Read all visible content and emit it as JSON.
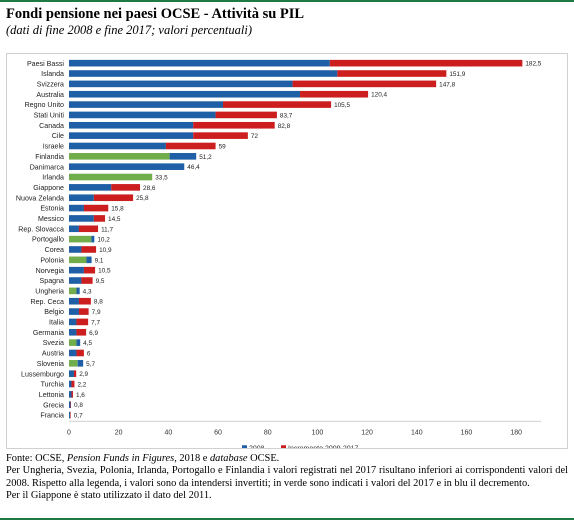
{
  "title": "Fondi pensione nei paesi OCSE - Attività su PIL",
  "subtitle": "(dati di fine 2008 e fine 2017; valori percentuali)",
  "chart_data": {
    "type": "bar",
    "orientation": "horizontal",
    "stacked": true,
    "categories": [
      "Paesi Bassi",
      "Islanda",
      "Svizzera",
      "Australia",
      "Regno Unito",
      "Stati Uniti",
      "Canada",
      "Cile",
      "Israele",
      "Finlandia",
      "Danimarca",
      "Irlanda",
      "Giappone",
      "Nuova Zelanda",
      "Estonia",
      "Messico",
      "Rep. Slovacca",
      "Portogallo",
      "Corea",
      "Polonia",
      "Norvegia",
      "Spagna",
      "Ungheria",
      "Rep. Ceca",
      "Belgio",
      "Italia",
      "Germania",
      "Svezia",
      "Austria",
      "Slovenia",
      "Lussemburgo",
      "Turchia",
      "Lettonia",
      "Grecia",
      "Francia"
    ],
    "data_labels": [
      "182,5",
      "151,9",
      "147,8",
      "120,4",
      "105,5",
      "83,7",
      "82,8",
      "72",
      "59",
      "51,2",
      "46,4",
      "33,5",
      "28,6",
      "25,8",
      "15,8",
      "14,5",
      "11,7",
      "10,2",
      "10,9",
      "9,1",
      "10,5",
      "9,5",
      "4,3",
      "8,8",
      "7,9",
      "7,7",
      "6,9",
      "4,5",
      "6",
      "5,7",
      "2,9",
      "2,2",
      "1,6",
      "0,8",
      "0,7"
    ],
    "series": [
      {
        "name": "2008",
        "color": "#1f5fa5",
        "values": [
          105,
          108,
          90,
          93,
          62,
          59,
          50,
          50,
          39,
          51.2,
          46.4,
          33.5,
          17,
          10,
          6,
          10,
          4,
          10.2,
          5,
          9.1,
          6,
          5,
          4.3,
          4,
          4,
          3,
          3,
          4.5,
          3,
          5.7,
          2,
          1,
          1,
          0.6,
          0.5
        ]
      },
      {
        "name": "Incremento 2009-2017",
        "color": "#cc1e1e",
        "values": [
          77.5,
          43.9,
          57.8,
          27.4,
          43.5,
          24.7,
          32.8,
          22,
          20,
          0,
          0,
          0,
          11.6,
          15.8,
          9.8,
          4.5,
          7.7,
          0,
          5.9,
          0,
          4.5,
          4.5,
          0,
          4.8,
          3.9,
          4.7,
          3.9,
          0,
          3,
          0,
          0.9,
          1.2,
          0.6,
          0.2,
          0.2
        ]
      }
    ],
    "green_categories": [
      "Finlandia",
      "Irlanda",
      "Portogallo",
      "Polonia",
      "Ungheria",
      "Svezia",
      "Slovenia"
    ],
    "green_values": [
      40.5,
      33.5,
      9,
      7,
      3,
      3,
      3.5
    ],
    "green_color": "#72ad4c",
    "x_ticks": [
      "0",
      "20",
      "40",
      "60",
      "80",
      "100",
      "120",
      "140",
      "160",
      "180"
    ],
    "xlim": [
      0,
      190
    ],
    "grid": false,
    "legend_position": "bottom"
  },
  "notes": {
    "source_prefix": "Fonte: OCSE, ",
    "source_italic1": "Pension Funds in Figures",
    "source_mid": ", 2018 e ",
    "source_italic2": "database",
    "source_suffix": " OCSE.",
    "line2": "Per Ungheria, Svezia, Polonia, Irlanda, Portogallo e Finlandia i valori registrati nel 2017 risultano inferiori ai corrispondenti valori del 2008. Rispetto alla legenda, i valori sono da intendersi invertiti; in verde sono indicati i valori del 2017 e in blu il decremento.",
    "line3": "Per il Giappone è stato utilizzato il dato del 2011."
  }
}
